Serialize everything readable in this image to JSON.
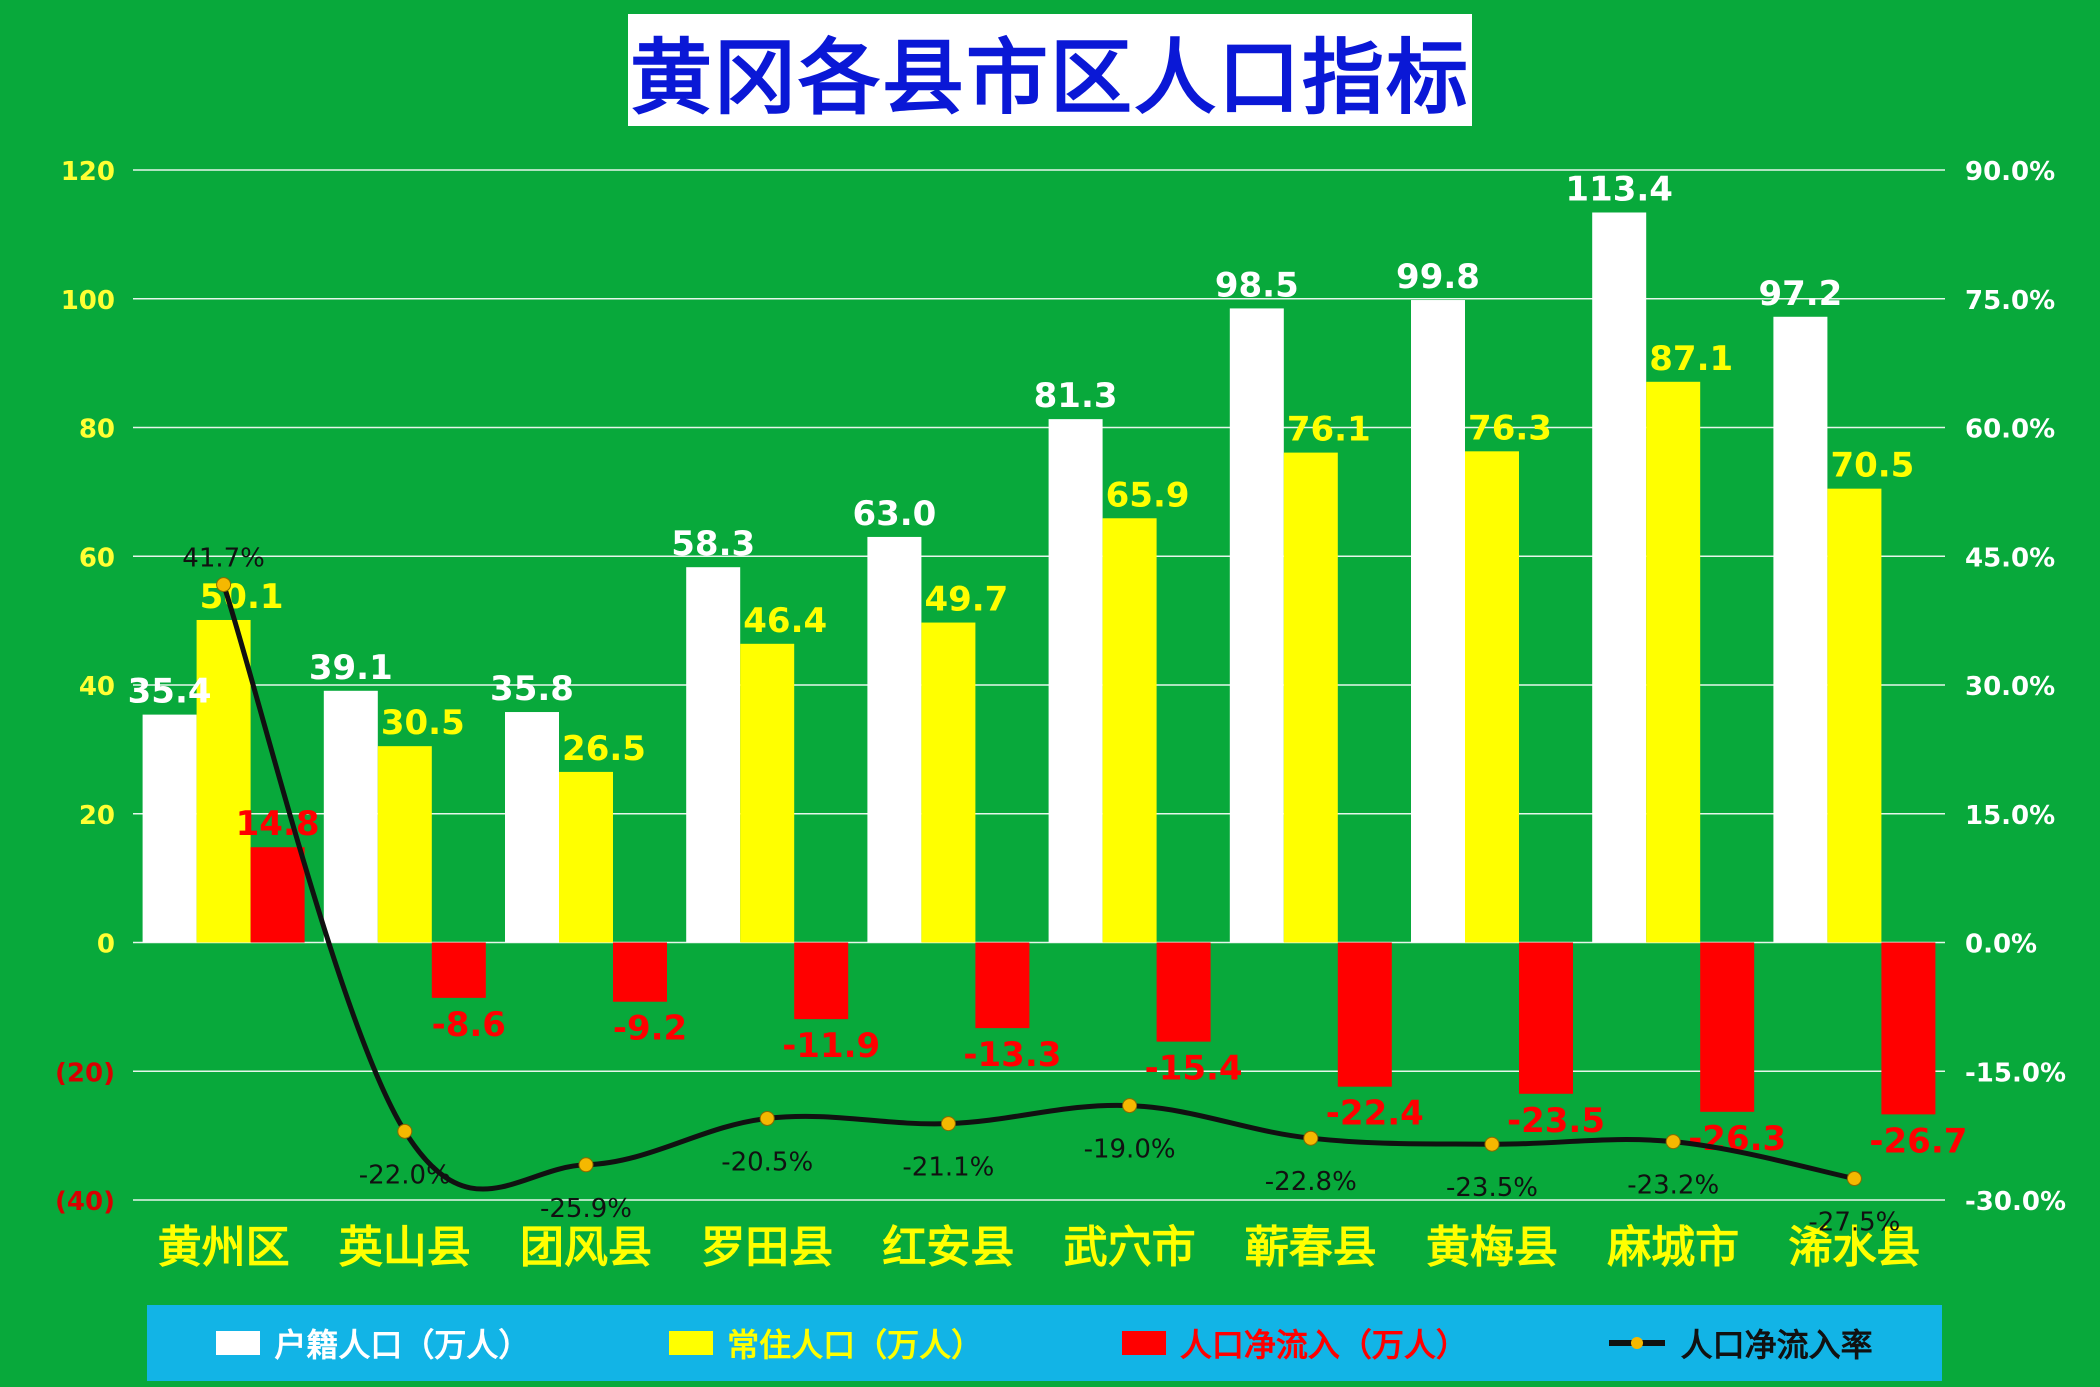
{
  "title": "黄冈各县市区人口指标",
  "colors": {
    "background": "#08a93b",
    "household_bar": "#ffffff",
    "resident_bar": "#ffff00",
    "net_inflow_bar": "#ff0000",
    "rate_line": "#111111",
    "rate_marker": "#f5b800",
    "left_axis_text": "#ffff33",
    "right_axis_text": "#ffffff",
    "negative_axis_text": "#d80000",
    "title_text": "#0a18d6",
    "legend_bg": "#12b4e6"
  },
  "legend": {
    "household": "户籍人口（万人）",
    "resident": "常住人口（万人）",
    "net_inflow": "人口净流入（万人）",
    "rate": "人口净流入率"
  },
  "chart_data": {
    "type": "bar",
    "categories": [
      "黄州区",
      "英山县",
      "团风县",
      "罗田县",
      "红安县",
      "武穴市",
      "蕲春县",
      "黄梅县",
      "麻城市",
      "浠水县"
    ],
    "series": [
      {
        "name": "户籍人口（万人）",
        "type": "bar",
        "axis": "left",
        "values": [
          35.4,
          39.1,
          35.8,
          58.3,
          63.0,
          81.3,
          98.5,
          99.8,
          113.4,
          97.2
        ],
        "labels": [
          "35.4",
          "39.1",
          "35.8",
          "58.3",
          "63.0",
          "81.3",
          "98.5",
          "99.8",
          "113.4",
          "97.2"
        ]
      },
      {
        "name": "常住人口（万人）",
        "type": "bar",
        "axis": "left",
        "values": [
          50.1,
          30.5,
          26.5,
          46.4,
          49.7,
          65.9,
          76.1,
          76.3,
          87.1,
          70.5
        ],
        "labels": [
          "50.1",
          "30.5",
          "26.5",
          "46.4",
          "49.7",
          "65.9",
          "76.1",
          "76.3",
          "87.1",
          "70.5"
        ]
      },
      {
        "name": "人口净流入（万人）",
        "type": "bar",
        "axis": "left",
        "values": [
          14.8,
          -8.6,
          -9.2,
          -11.9,
          -13.3,
          -15.4,
          -22.4,
          -23.5,
          -26.3,
          -26.7
        ],
        "labels": [
          "14.8",
          "-8.6",
          "-9.2",
          "-11.9",
          "-13.3",
          "-15.4",
          "-22.4",
          "-23.5",
          "-26.3",
          "-26.7"
        ]
      },
      {
        "name": "人口净流入率",
        "type": "line",
        "axis": "right",
        "values": [
          41.7,
          -22.0,
          -25.9,
          -20.5,
          -21.1,
          -19.0,
          -22.8,
          -23.5,
          -23.2,
          -27.5
        ],
        "labels": [
          "41.7%",
          "-22.0%",
          "-25.9%",
          "-20.5%",
          "-21.1%",
          "-19.0%",
          "-22.8%",
          "-23.5%",
          "-23.2%",
          "-27.5%"
        ]
      }
    ],
    "y_left": {
      "min": -40,
      "max": 120,
      "ticks": [
        120,
        100,
        80,
        60,
        40,
        20,
        0,
        -20,
        -40
      ],
      "tick_labels": [
        "120",
        "100",
        "80",
        "60",
        "40",
        "20",
        "0",
        "(20)",
        "(40)"
      ]
    },
    "y_right": {
      "min": -30,
      "max": 90,
      "ticks": [
        90,
        75,
        60,
        45,
        30,
        15,
        0,
        -15,
        -30
      ],
      "tick_labels": [
        "90.0%",
        "75.0%",
        "60.0%",
        "45.0%",
        "30.0%",
        "15.0%",
        "0.0%",
        "-15.0%",
        "-30.0%"
      ]
    },
    "grid": true,
    "legend_position": "bottom"
  }
}
